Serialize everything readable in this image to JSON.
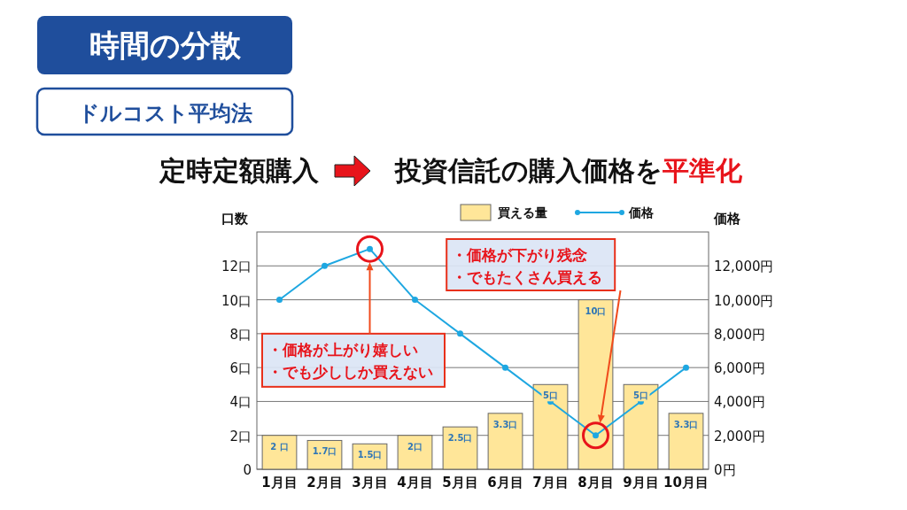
{
  "chart_data": {
    "type": "bar",
    "title": "時間の分散",
    "subtitle": "ドルコスト平均法",
    "annotations": [
      "定時定額購入",
      "投資信託の購入価格を",
      "平準化",
      "・価格が上がり嬉しい",
      "・でも少ししか買えない",
      "・価格が下がり残念",
      "・でもたくさん買える"
    ],
    "categories": [
      "1月目",
      "2月目",
      "3月目",
      "4月目",
      "5月目",
      "6月目",
      "7月目",
      "8月目",
      "9月目",
      "10月目"
    ],
    "series": [
      {
        "name": "買える量",
        "color": "#ffe699",
        "values": [
          2,
          1.7,
          1.5,
          2,
          2.5,
          3.3,
          5,
          10,
          5,
          3.3
        ],
        "value_labels": [
          "2 口",
          "1.7口",
          "1.5口",
          "2口",
          "2.5口",
          "3.3口",
          "5口",
          "10口",
          "5口",
          "3.3口"
        ]
      },
      {
        "name": "価格",
        "type": "line",
        "axis": "y2",
        "color": "#1ea7e1",
        "values": [
          10000,
          12000,
          13000,
          10000,
          8000,
          6000,
          4000,
          2000,
          4000,
          6000
        ]
      }
    ],
    "ylabel": "口数",
    "y2label": "価格",
    "ylim": [
      0,
      14
    ],
    "yticks": [
      {
        "value": 0,
        "label": "0"
      },
      {
        "value": 2,
        "label": "2口"
      },
      {
        "value": 4,
        "label": "4口"
      },
      {
        "value": 6,
        "label": "6口"
      },
      {
        "value": 8,
        "label": "8口"
      },
      {
        "value": 10,
        "label": "10口"
      },
      {
        "value": 12,
        "label": "12口"
      }
    ],
    "y2lim": [
      0,
      14000
    ],
    "y2ticks": [
      {
        "value": 0,
        "label": "0円"
      },
      {
        "value": 2000,
        "label": "2,000円"
      },
      {
        "value": 4000,
        "label": "4,000円"
      },
      {
        "value": 6000,
        "label": "6,000円"
      },
      {
        "value": 8000,
        "label": "8,000円"
      },
      {
        "value": 10000,
        "label": "10,000円"
      },
      {
        "value": 12000,
        "label": "12,000円"
      }
    ],
    "grid": "y",
    "legend": "top",
    "marker": "circle"
  }
}
